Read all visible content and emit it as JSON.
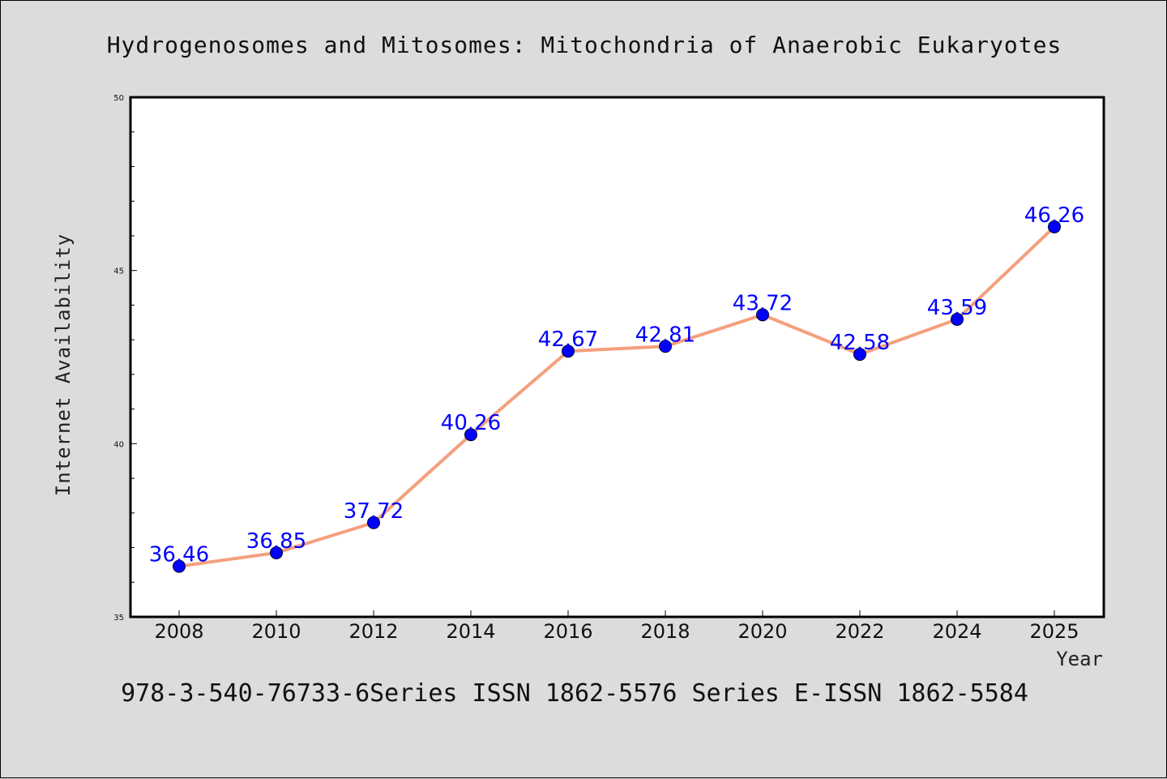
{
  "title": "Hydrogenosomes and Mitosomes: Mitochondria of Anaerobic Eukaryotes",
  "footer": "978-3-540-76733-6Series ISSN 1862-5576 Series E-ISSN 1862-5584",
  "colors": {
    "line": "#f4a07c",
    "marker": "#0000ff",
    "label": "#0000ff",
    "background": "#dcdcdc",
    "plot_bg": "#ffffff"
  },
  "chart_data": {
    "type": "line",
    "title": "Hydrogenosomes and Mitosomes: Mitochondria of Anaerobic Eukaryotes",
    "xlabel": "Year",
    "ylabel": "Internet Availability",
    "categories": [
      "2008",
      "2010",
      "2012",
      "2014",
      "2016",
      "2018",
      "2020",
      "2022",
      "2024",
      "2025"
    ],
    "series": [
      {
        "values": [
          36.46,
          36.85,
          37.72,
          40.26,
          42.67,
          42.81,
          43.72,
          42.58,
          43.59,
          46.26
        ]
      }
    ],
    "data_labels": [
      "36.46",
      "36.85",
      "37.72",
      "40.26",
      "42.67",
      "42.81",
      "43.72",
      "42.58",
      "43.59",
      "46.26"
    ],
    "ylim": [
      35,
      50
    ],
    "yticks": [
      "35",
      "40",
      "45",
      "50"
    ],
    "grid": false,
    "legend": "none"
  }
}
